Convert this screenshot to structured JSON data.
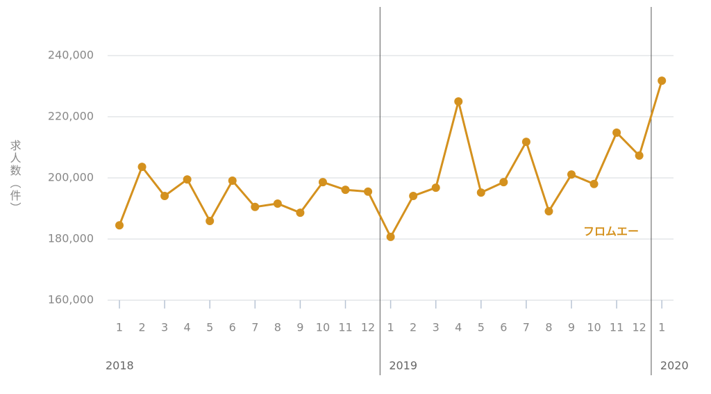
{
  "chart_data": {
    "type": "line",
    "y_label": "求人数（件）",
    "groups": [
      {
        "label": "2018",
        "categories": [
          "1",
          "2",
          "3",
          "4",
          "5",
          "6",
          "7",
          "8",
          "9",
          "10",
          "11",
          "12"
        ]
      },
      {
        "label": "2019",
        "categories": [
          "1",
          "2",
          "3",
          "4",
          "5",
          "6",
          "7",
          "8",
          "9",
          "10",
          "11",
          "12"
        ]
      },
      {
        "label": "2020",
        "categories": [
          "1"
        ]
      }
    ],
    "series": [
      {
        "name": "フロムエー",
        "color": "#d4911e",
        "values": [
          184500,
          203600,
          194100,
          199500,
          185900,
          199100,
          190500,
          191600,
          188600,
          198600,
          196100,
          195500,
          180700,
          194100,
          196800,
          225000,
          195200,
          198600,
          211800,
          189100,
          201100,
          198000,
          214800,
          207300,
          231800
        ]
      }
    ],
    "ylim": [
      160000,
      240000
    ],
    "yticks": [
      {
        "value": 160000,
        "label": "160,000"
      },
      {
        "value": 180000,
        "label": "180,000"
      },
      {
        "value": 200000,
        "label": "200,000"
      },
      {
        "value": 220000,
        "label": "220,000"
      },
      {
        "value": 240000,
        "label": "240,000"
      }
    ],
    "grid": true
  }
}
